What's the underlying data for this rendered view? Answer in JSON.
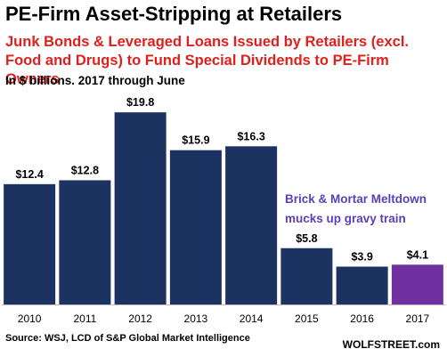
{
  "header": {
    "title": "PE-Firm Asset-Stripping at Retailers",
    "subtitle": "Junk Bonds & Leveraged Loans Issued by Retailers (excl. Food and Drugs) to Fund Special Dividends to PE-Firm Owners",
    "note": "In $ billions. 2017 through June"
  },
  "annotation": {
    "line1": "Brick & Mortar Meltdown",
    "line2": "mucks up gravy train"
  },
  "footer": {
    "source": "Source: WSJ, LCD of S&P Global Market Intelligence",
    "brand": "WOLFSTREET.com"
  },
  "colors": {
    "bar": "#1c3260",
    "highlight": "#7030a0",
    "title": "#000000",
    "subtitle": "#e0201d",
    "annotation": "#5b3fb8"
  },
  "chart_data": {
    "type": "bar",
    "categories": [
      "2010",
      "2011",
      "2012",
      "2013",
      "2014",
      "2015",
      "2016",
      "2017"
    ],
    "values": [
      12.4,
      12.8,
      19.8,
      15.9,
      16.3,
      5.8,
      3.9,
      4.1
    ],
    "value_labels": [
      "$12.4",
      "$12.8",
      "$19.8",
      "$15.9",
      "$16.3",
      "$5.8",
      "$3.9",
      "$4.1"
    ],
    "highlight_index": 7,
    "ylim": [
      0,
      22
    ],
    "grid": false,
    "title": "PE-Firm Asset-Stripping at Retailers",
    "xlabel": "",
    "ylabel": ""
  }
}
